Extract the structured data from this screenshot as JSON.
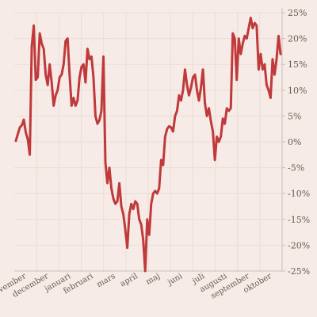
{
  "chart_data": {
    "type": "line",
    "title": "",
    "xlabel": "",
    "ylabel": "",
    "ylim": [
      -25,
      25
    ],
    "y_ticks": [
      25,
      20,
      15,
      10,
      5,
      0,
      -5,
      -10,
      -15,
      -20,
      -25
    ],
    "y_tick_labels": [
      "25%",
      "20%",
      "15%",
      "10%",
      "5%",
      "0%",
      "-5%",
      "-10%",
      "-15%",
      "-20%",
      "-25%"
    ],
    "x_tick_labels": [
      "november",
      "december",
      "januari",
      "februari",
      "mars",
      "april",
      "maj",
      "juni",
      "juli",
      "augusti",
      "september",
      "oktober"
    ],
    "grid": true,
    "line_color": "#c0393b",
    "series": [
      {
        "values": [
          0.2,
          1.5,
          2.8,
          3.2,
          4.3,
          1.8,
          0.5,
          -2.5,
          18.5,
          22.5,
          12,
          12.5,
          21,
          19,
          18,
          13,
          11,
          15,
          11.5,
          7,
          9,
          10,
          12.5,
          13,
          15,
          19.5,
          20,
          13,
          7,
          8.5,
          7,
          8,
          12.5,
          14.5,
          15,
          11.5,
          18,
          16,
          16.5,
          12.5,
          5,
          3.5,
          4.2,
          6,
          16.5,
          -4,
          -8,
          -5,
          -9,
          -11,
          -12,
          -11.5,
          -8,
          -12.5,
          -14,
          -17,
          -20.5,
          -14,
          -12,
          -13,
          -11.5,
          -12,
          -15,
          -16,
          -19,
          -25,
          -15,
          -18,
          -12,
          -10,
          -9.5,
          -10,
          -9,
          -3.5,
          -4.5,
          1,
          2.5,
          3,
          2.8,
          2,
          5,
          6,
          9,
          8,
          10,
          14,
          11,
          9,
          10.5,
          12.5,
          13,
          10,
          8,
          10.5,
          14,
          7.5,
          5,
          6.5,
          4,
          2,
          -3.5,
          1,
          0,
          1,
          4.5,
          3.5,
          6.5,
          6,
          6.5,
          21,
          20,
          12,
          20,
          17,
          19,
          20.5,
          20,
          22,
          24,
          22,
          23,
          22.5,
          14,
          17,
          14,
          15,
          11,
          10,
          8.5,
          16,
          13,
          16,
          20.5,
          17
        ]
      }
    ]
  }
}
